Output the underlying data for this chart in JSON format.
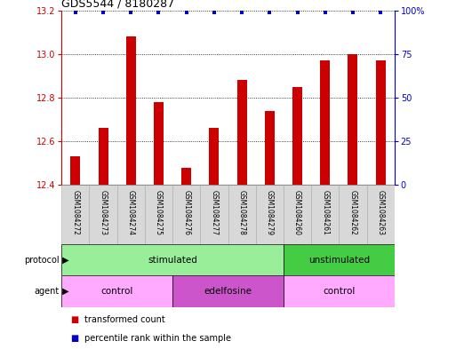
{
  "title": "GDS5544 / 8180287",
  "samples": [
    "GSM1084272",
    "GSM1084273",
    "GSM1084274",
    "GSM1084275",
    "GSM1084276",
    "GSM1084277",
    "GSM1084278",
    "GSM1084279",
    "GSM1084260",
    "GSM1084261",
    "GSM1084262",
    "GSM1084263"
  ],
  "bar_values": [
    12.53,
    12.66,
    13.08,
    12.78,
    12.48,
    12.66,
    12.88,
    12.74,
    12.85,
    12.97,
    13.0,
    12.97
  ],
  "percentile_values": [
    99,
    99,
    99,
    99,
    99,
    99,
    99,
    99,
    99,
    99,
    99,
    99
  ],
  "ylim_left": [
    12.4,
    13.2
  ],
  "ylim_right": [
    0,
    100
  ],
  "yticks_left": [
    12.4,
    12.6,
    12.8,
    13.0,
    13.2
  ],
  "yticks_right": [
    0,
    25,
    50,
    75,
    100
  ],
  "ytick_right_labels": [
    "0",
    "25",
    "50",
    "75",
    "100%"
  ],
  "bar_color": "#cc0000",
  "dot_color": "#0000cc",
  "protocol_groups": [
    {
      "label": "stimulated",
      "start": 0,
      "end": 8,
      "color": "#99ee99"
    },
    {
      "label": "unstimulated",
      "start": 8,
      "end": 12,
      "color": "#44cc44"
    }
  ],
  "agent_groups": [
    {
      "label": "control",
      "start": 0,
      "end": 4,
      "color": "#ffaaff"
    },
    {
      "label": "edelfosine",
      "start": 4,
      "end": 8,
      "color": "#cc55cc"
    },
    {
      "label": "control",
      "start": 8,
      "end": 12,
      "color": "#ffaaff"
    }
  ],
  "legend_items": [
    {
      "label": "transformed count",
      "color": "#cc0000"
    },
    {
      "label": "percentile rank within the sample",
      "color": "#0000cc"
    }
  ],
  "protocol_label": "protocol",
  "agent_label": "agent",
  "background_color": "#ffffff"
}
